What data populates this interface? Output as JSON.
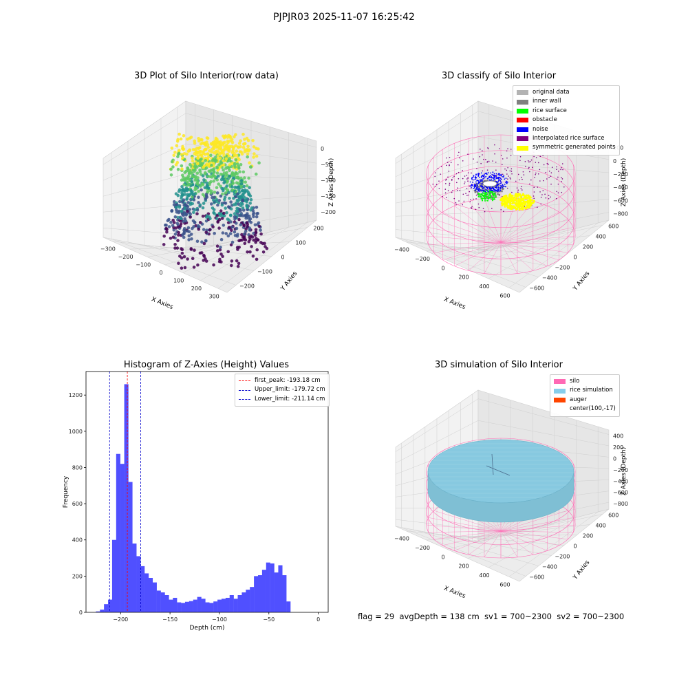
{
  "figure": {
    "suptitle": "PJPJR03 2025-11-07 16:25:42",
    "footer": "flag = 29  avgDepth = 138 cm  sv1 = 700~2300  sv2 = 700~2300"
  },
  "colors": {
    "histogram_bar": "#5050ff",
    "peak_line": "#ff0000",
    "limit_lines": "#0000cc",
    "silo_wire": "#ff69b4",
    "rice_sim": "#87c9e0",
    "viridis": [
      "#440154",
      "#3b528b",
      "#21908d",
      "#5dc963",
      "#fde725"
    ]
  },
  "chart_data": [
    {
      "type": "scatter",
      "projection": "3d",
      "title": "3D Plot of Silo Interior(row data)",
      "xlabel": "X Axies",
      "ylabel": "Y Axies",
      "zlabel": "Z Axies (Depth)",
      "xticks": [
        "−300",
        "−200",
        "−100",
        "0",
        "100",
        "200",
        "300"
      ],
      "yticks": [
        "−200",
        "−100",
        "0",
        "100",
        "200"
      ],
      "zticks": [
        "0",
        "−50",
        "−100",
        "−150",
        "−200"
      ],
      "xlim": [
        -300,
        300
      ],
      "ylim": [
        -200,
        200
      ],
      "zlim": [
        -220,
        0
      ],
      "colormap": "viridis"
    },
    {
      "type": "scatter",
      "projection": "3d",
      "title": "3D classify of Silo Interior",
      "xlabel": "X Axies",
      "ylabel": "Y Axies",
      "zlabel": "Z Axies (Depth)",
      "xticks": [
        "−400",
        "−200",
        "0",
        "200",
        "400",
        "600"
      ],
      "yticks": [
        "−600",
        "−400",
        "−200",
        "0",
        "200",
        "400",
        "600"
      ],
      "zticks": [
        "200",
        "0",
        "−200",
        "−400",
        "−600",
        "−800"
      ],
      "legend_position": "upper right",
      "legend": [
        {
          "label": "original data",
          "color": "#b3b3b3"
        },
        {
          "label": "inner wall",
          "color": "#808080"
        },
        {
          "label": "rice surface",
          "color": "#00ff00"
        },
        {
          "label": "obstacle",
          "color": "#ff0000"
        },
        {
          "label": "noise",
          "color": "#0000ff"
        },
        {
          "label": "interpolated rice surface",
          "color": "#800080"
        },
        {
          "label": "symmetric generated points",
          "color": "#ffff00"
        }
      ]
    },
    {
      "type": "bar",
      "subtype": "histogram",
      "title": "Histogram of Z-Axies (Height) Values",
      "xlabel": "Depth (cm)",
      "ylabel": "Frequency",
      "xlim": [
        -235,
        10
      ],
      "ylim": [
        0,
        1330
      ],
      "xticks": [
        {
          "value": -200,
          "label": "−200"
        },
        {
          "value": -150,
          "label": "−150"
        },
        {
          "value": -100,
          "label": "−100"
        },
        {
          "value": -50,
          "label": "−50"
        },
        {
          "value": 0,
          "label": "0"
        }
      ],
      "yticks": [
        0,
        200,
        400,
        600,
        800,
        1000,
        1200
      ],
      "bin_start": -225,
      "bin_width": 4.1,
      "values": [
        5,
        15,
        45,
        70,
        400,
        875,
        820,
        1260,
        720,
        380,
        310,
        255,
        215,
        190,
        165,
        120,
        110,
        95,
        70,
        80,
        55,
        52,
        58,
        62,
        70,
        85,
        75,
        55,
        52,
        60,
        70,
        75,
        80,
        95,
        75,
        95,
        110,
        125,
        140,
        200,
        205,
        235,
        275,
        270,
        220,
        260,
        205,
        60
      ],
      "lines": [
        {
          "label": "first_peak: -193.18 cm",
          "x": -193.18,
          "color": "#ff0000"
        },
        {
          "label": "Upper_limit: -179.72 cm",
          "x": -179.72,
          "color": "#0000cc"
        },
        {
          "label": "Lower_limit: -211.14 cm",
          "x": -211.14,
          "color": "#0000cc"
        }
      ],
      "legend_position": "upper right"
    },
    {
      "type": "scatter",
      "projection": "3d",
      "title": "3D simulation of Silo Interior",
      "xlabel": "X Axies",
      "ylabel": "Y Axies",
      "zlabel": "Z Axies (Depth)",
      "xticks": [
        "−400",
        "−200",
        "0",
        "200",
        "400",
        "600"
      ],
      "yticks": [
        "−600",
        "−400",
        "−200",
        "0",
        "200",
        "400",
        "600"
      ],
      "zticks": [
        "400",
        "200",
        "0",
        "−200",
        "−400",
        "−600",
        "−800"
      ],
      "legend_position": "upper right",
      "legend": [
        {
          "label": "silo",
          "color": "#ff69b4"
        },
        {
          "label": "rice simulation",
          "color": "#87ceeb"
        },
        {
          "label": "auger",
          "color": "#ff4500"
        },
        {
          "label": "center(100,-17)",
          "color": ""
        }
      ]
    }
  ]
}
